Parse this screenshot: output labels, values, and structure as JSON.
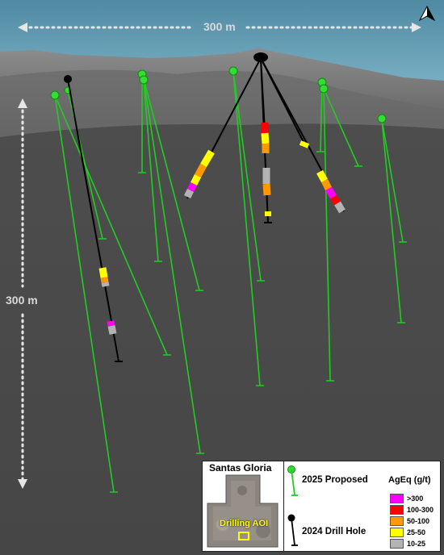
{
  "scale": {
    "horizontal_label": "300 m",
    "vertical_label": "300 m"
  },
  "north_arrow": {
    "label": "N",
    "icon": "north-arrow-icon"
  },
  "legend": {
    "inset_title": "Santas Gloria",
    "inset_label": "Drilling AOI",
    "proposed_label": "2025 Proposed",
    "proposed_color": "#22cc22",
    "drill_label": "2024 Drill Hole",
    "drill_color": "#000000",
    "grade_title": "AgEq (g/t)",
    "grades": [
      {
        "label": ">300",
        "color": "#ff00ff"
      },
      {
        "label": "100-300",
        "color": "#ff0000"
      },
      {
        "label": "50-100",
        "color": "#ff9900"
      },
      {
        "label": "25-50",
        "color": "#ffff00"
      },
      {
        "label": "10-25",
        "color": "#b3b3b3"
      }
    ]
  }
}
